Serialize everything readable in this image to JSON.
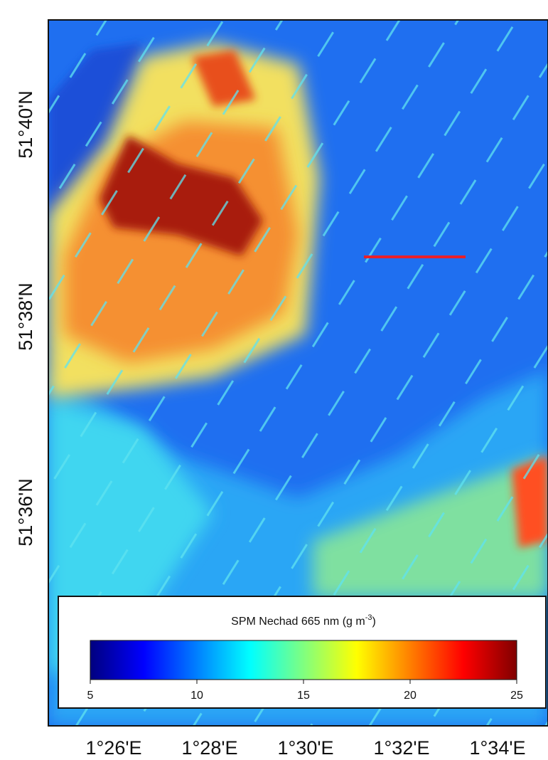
{
  "map": {
    "lat_labels": [
      "51°40'N",
      "51°38'N",
      "51°36'N"
    ],
    "lon_labels": [
      "1°26'E",
      "1°28'E",
      "1°30'E",
      "1°32'E",
      "1°34'E"
    ],
    "colorbar": {
      "title": "SPM Nechad 665 nm (g m",
      "title_sup": "-3",
      "title_end": ")",
      "range": [
        5,
        25
      ],
      "ticks": [
        5,
        10,
        15,
        20,
        25
      ]
    }
  }
}
